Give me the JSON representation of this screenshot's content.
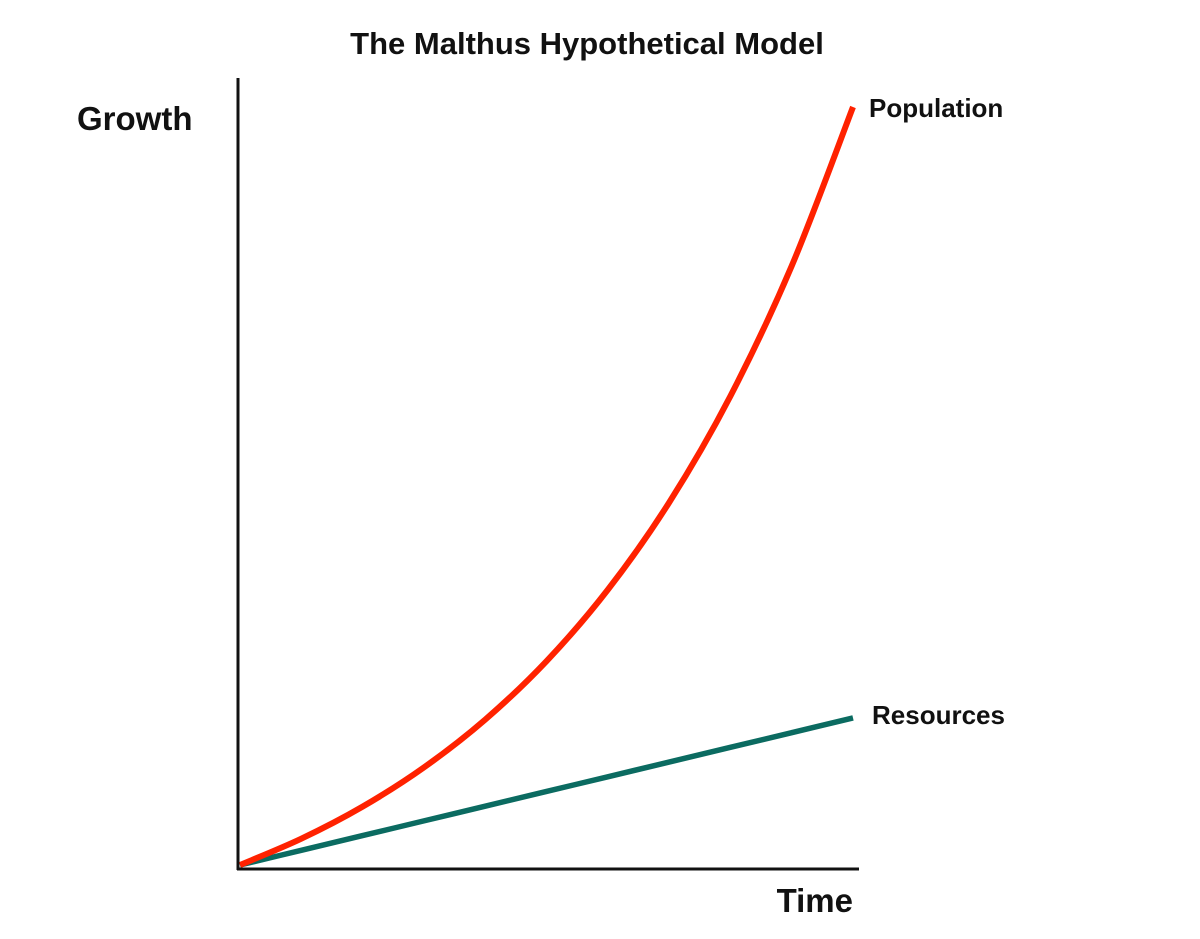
{
  "chart_data": {
    "type": "line",
    "title": "The Malthus Hypothetical Model",
    "xlabel": "Time",
    "ylabel": "Growth",
    "xlim": [
      0,
      10
    ],
    "ylim": [
      0,
      104
    ],
    "grid": false,
    "x": [
      0,
      1,
      2,
      3,
      4,
      5,
      6,
      7,
      8,
      9,
      10
    ],
    "series": [
      {
        "name": "Population",
        "color": "#ff2200",
        "values": [
          0,
          3.47,
          7.7,
          12.87,
          19.18,
          26.89,
          36.31,
          47.81,
          61.86,
          79.03,
          100
        ]
      },
      {
        "name": "Resources",
        "color": "#0b6b61",
        "values": [
          0,
          1.94,
          3.88,
          5.82,
          7.76,
          9.7,
          11.64,
          13.58,
          15.52,
          17.46,
          19.4
        ]
      }
    ]
  }
}
